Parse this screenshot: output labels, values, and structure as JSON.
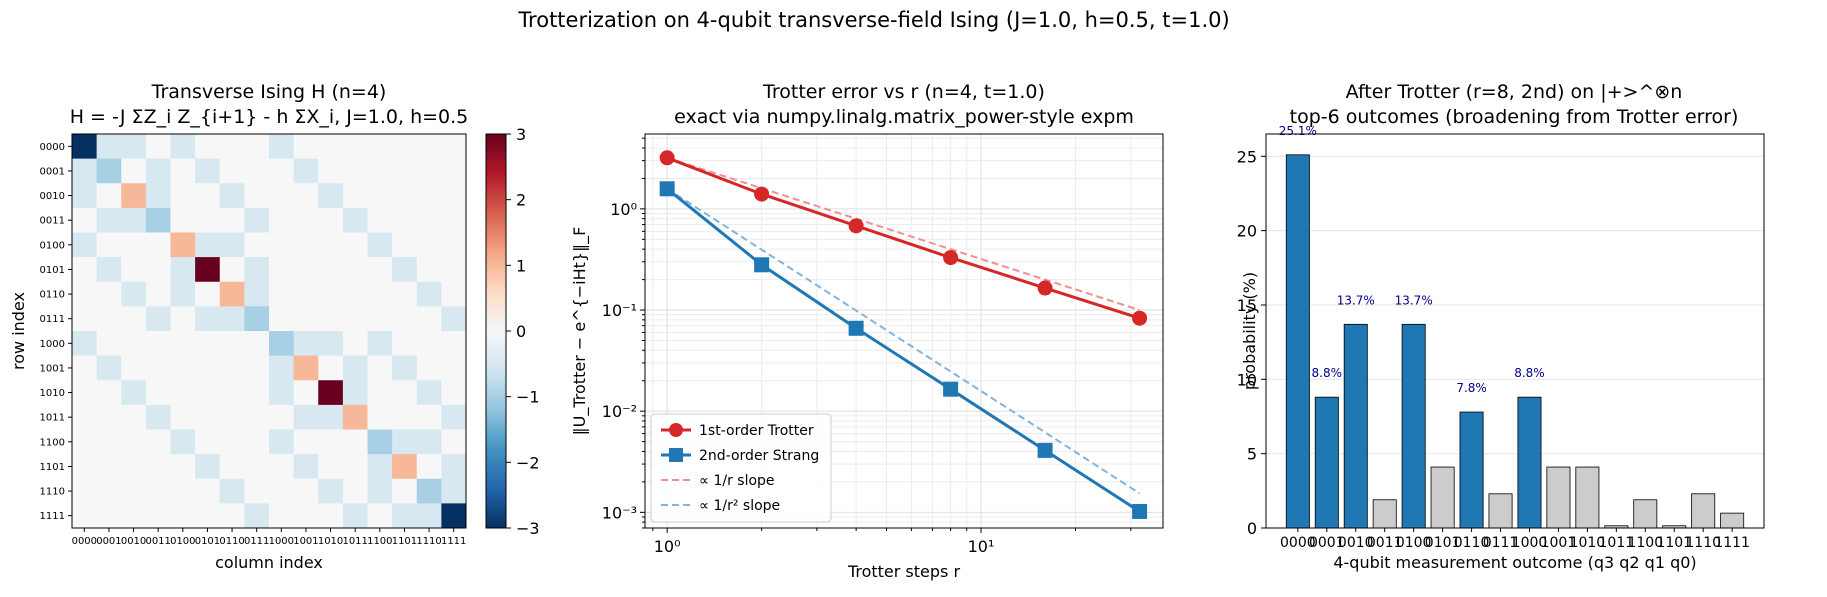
{
  "suptitle": "Trotterization on 4-qubit transverse-field Ising  (J=1.0, h=0.5, t=1.0)",
  "chart_data": [
    {
      "type": "heatmap",
      "title": "Transverse Ising H (n=4)",
      "subtitle": "H = -J ΣZ_i Z_{i+1} - h ΣX_i, J=1.0, h=0.5",
      "xlabel": "column index",
      "ylabel": "row index",
      "basis": [
        "0000",
        "0001",
        "0010",
        "0011",
        "0100",
        "0101",
        "0110",
        "0111",
        "1000",
        "1001",
        "1010",
        "1011",
        "1100",
        "1101",
        "1110",
        "1111"
      ],
      "diagonal": [
        -3,
        -1,
        1,
        -1,
        1,
        3,
        1,
        -1,
        -1,
        1,
        3,
        1,
        -1,
        1,
        -1,
        -3
      ],
      "offdiagonal": -0.5,
      "colorbar": {
        "min": -3,
        "max": 3,
        "ticks": [
          3,
          2,
          1,
          0,
          -1,
          -2,
          -3
        ]
      },
      "colorbar_labels": [
        "3",
        "2",
        "1",
        "0",
        "−1",
        "−2",
        "−3"
      ],
      "colormap": "RdBu_r"
    },
    {
      "type": "line",
      "title": "Trotter error vs r (n=4, t=1.0)",
      "subtitle": "exact via numpy.linalg.matrix_power-style expm",
      "xlabel": "Trotter steps r",
      "ylabel": "‖U_Trotter − e^{−iHt}‖_F",
      "xscale": "log",
      "yscale": "log",
      "xlim": [
        0.85,
        38
      ],
      "ylim": [
        0.0007,
        5.5
      ],
      "xticks": [
        1,
        10
      ],
      "xtick_labels": [
        "10⁰",
        "10¹"
      ],
      "yticks": [
        0.001,
        0.01,
        0.1,
        1
      ],
      "ytick_labels": [
        "10⁻³",
        "10⁻²",
        "10⁻¹",
        "10⁰"
      ],
      "x": [
        1,
        2,
        4,
        8,
        16,
        32
      ],
      "series": [
        {
          "name": "1st-order Trotter",
          "values": [
            3.2,
            1.4,
            0.68,
            0.33,
            0.165,
            0.083
          ],
          "color": "#d62728",
          "marker": "circle"
        },
        {
          "name": "2nd-order Strang",
          "values": [
            1.58,
            0.28,
            0.066,
            0.0165,
            0.0041,
            0.00102
          ],
          "color": "#1f77b4",
          "marker": "square"
        },
        {
          "name": "∝ 1/r slope",
          "values": [
            3.2,
            1.6,
            0.8,
            0.4,
            0.2,
            0.1
          ],
          "color": "#ee9090",
          "dashed": true
        },
        {
          "name": "∝ 1/r² slope",
          "values": [
            1.58,
            0.395,
            0.0988,
            0.0247,
            0.00617,
            0.00154
          ],
          "color": "#80b4dc",
          "dashed": true
        }
      ],
      "legend": "lower-left",
      "grid": true
    },
    {
      "type": "bar",
      "title": "After Trotter (r=8, 2nd) on |+>^⊗n",
      "subtitle": "top-6 outcomes (broadening from Trotter error)",
      "xlabel": "4-qubit measurement outcome (q3 q2 q1 q0)",
      "ylabel": "probability (%)",
      "ylim": [
        0,
        26.5
      ],
      "yticks": [
        0,
        5,
        10,
        15,
        20,
        25
      ],
      "categories": [
        "0000",
        "0001",
        "0010",
        "0011",
        "0100",
        "0101",
        "0110",
        "0111",
        "1000",
        "1001",
        "1010",
        "1011",
        "1100",
        "1101",
        "1110",
        "1111"
      ],
      "values": [
        25.1,
        8.8,
        13.7,
        1.9,
        13.7,
        4.1,
        7.8,
        2.3,
        8.8,
        4.1,
        4.1,
        0.15,
        1.9,
        0.15,
        2.3,
        1.0
      ],
      "highlight": [
        true,
        true,
        true,
        false,
        true,
        false,
        true,
        false,
        true,
        false,
        false,
        false,
        false,
        false,
        false,
        false
      ],
      "data_labels": [
        "25.1%",
        "8.8%",
        "13.7%",
        "",
        "13.7%",
        "",
        "7.8%",
        "",
        "8.8%",
        "",
        "",
        "",
        "",
        "",
        "",
        ""
      ],
      "highlight_color": "#1f77b4",
      "other_color": "#cccccc",
      "label_color": "#00008b",
      "grid": "y"
    }
  ]
}
